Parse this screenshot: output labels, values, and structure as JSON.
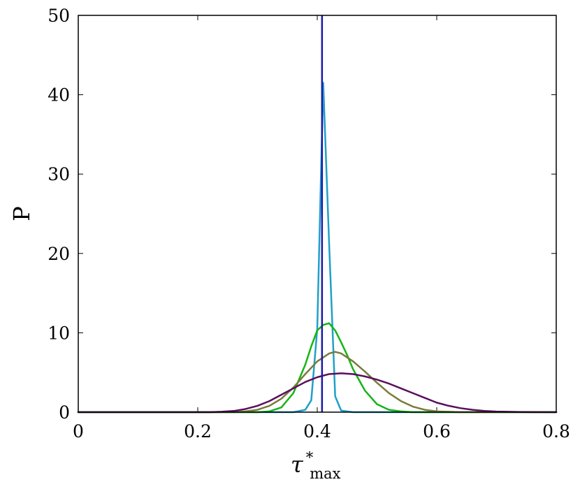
{
  "chart_data": {
    "type": "line",
    "title": "",
    "xlabel": {
      "symbol": "τ",
      "superscript": "*",
      "subscript": "max"
    },
    "ylabel": "P",
    "xlim": [
      0,
      0.8
    ],
    "ylim": [
      0,
      50
    ],
    "x_ticks": [
      "0",
      "0.2",
      "0.4",
      "0.6",
      "0.8"
    ],
    "y_ticks": [
      "0",
      "10",
      "20",
      "30",
      "40",
      "50"
    ],
    "x_tick_values": [
      0,
      0.2,
      0.4,
      0.6,
      0.8
    ],
    "y_tick_values": [
      0,
      10,
      20,
      30,
      40,
      50
    ],
    "grid": false,
    "legend": "none",
    "vertical_line": {
      "x": 0.408,
      "color": "#1a1aa6"
    },
    "series": [
      {
        "color": "#1fa0c8",
        "x": [
          0.0,
          0.36,
          0.38,
          0.39,
          0.4,
          0.41,
          0.42,
          0.43,
          0.44,
          0.46,
          0.8
        ],
        "y": [
          0,
          0,
          0.3,
          1.5,
          10.5,
          41.5,
          21,
          2,
          0.2,
          0,
          0
        ]
      },
      {
        "color": "#16b416",
        "x": [
          0.0,
          0.3,
          0.32,
          0.34,
          0.36,
          0.38,
          0.39,
          0.4,
          0.41,
          0.42,
          0.43,
          0.44,
          0.45,
          0.46,
          0.48,
          0.5,
          0.52,
          0.54,
          0.56,
          0.8
        ],
        "y": [
          0,
          0,
          0.1,
          0.6,
          2.4,
          6.0,
          8.3,
          10.3,
          11.0,
          11.2,
          10.3,
          8.8,
          7.2,
          5.4,
          2.7,
          1.0,
          0.3,
          0.1,
          0,
          0
        ]
      },
      {
        "color": "#7a7a3a",
        "x": [
          0.0,
          0.26,
          0.28,
          0.3,
          0.32,
          0.34,
          0.36,
          0.38,
          0.4,
          0.42,
          0.43,
          0.44,
          0.46,
          0.48,
          0.5,
          0.52,
          0.54,
          0.56,
          0.58,
          0.6,
          0.62,
          0.64,
          0.8
        ],
        "y": [
          0,
          0,
          0.1,
          0.3,
          0.8,
          1.7,
          3.1,
          4.8,
          6.4,
          7.4,
          7.6,
          7.4,
          6.4,
          5.1,
          3.7,
          2.4,
          1.4,
          0.7,
          0.3,
          0.1,
          0.05,
          0,
          0
        ]
      },
      {
        "color": "#5a0f5e",
        "x": [
          0.0,
          0.22,
          0.24,
          0.26,
          0.28,
          0.3,
          0.32,
          0.34,
          0.36,
          0.38,
          0.4,
          0.42,
          0.44,
          0.46,
          0.48,
          0.5,
          0.52,
          0.54,
          0.56,
          0.58,
          0.6,
          0.62,
          0.64,
          0.66,
          0.68,
          0.7,
          0.74,
          0.8
        ],
        "y": [
          0,
          0,
          0.05,
          0.15,
          0.4,
          0.8,
          1.4,
          2.2,
          3.0,
          3.8,
          4.4,
          4.8,
          4.9,
          4.8,
          4.5,
          4.1,
          3.6,
          3.0,
          2.4,
          1.8,
          1.2,
          0.8,
          0.5,
          0.3,
          0.15,
          0.08,
          0.02,
          0
        ]
      }
    ]
  }
}
